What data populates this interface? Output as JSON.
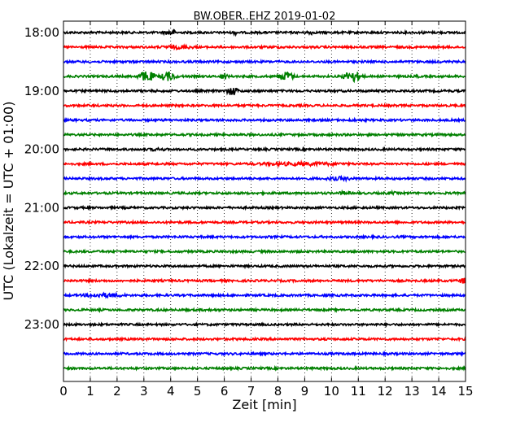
{
  "chart_data": {
    "type": "line",
    "title": "BW.OBER..EHZ 2019-01-02",
    "xlabel": "Zeit  [min]",
    "ylabel": "UTC (Lokalzeit = UTC + 01:00)",
    "xlim": [
      0,
      15
    ],
    "xticks": [
      "0",
      "1",
      "2",
      "3",
      "4",
      "5",
      "6",
      "7",
      "8",
      "9",
      "10",
      "11",
      "12",
      "13",
      "14",
      "15"
    ],
    "yticks": [
      {
        "label": "18:00",
        "trace": 0
      },
      {
        "label": "19:00",
        "trace": 4
      },
      {
        "label": "20:00",
        "trace": 8
      },
      {
        "label": "21:00",
        "trace": 12
      },
      {
        "label": "22:00",
        "trace": 16
      },
      {
        "label": "23:00",
        "trace": 20
      }
    ],
    "grid": "vertical dotted at each minute",
    "series": [
      {
        "color": "#000000",
        "bursts": [
          [
            4.0,
            0.5,
            4
          ],
          [
            6.4,
            0.2,
            3
          ],
          [
            9.2,
            0.3,
            3
          ],
          [
            13.4,
            0.2,
            2
          ]
        ]
      },
      {
        "color": "#ff0000",
        "bursts": [
          [
            4.3,
            1.8,
            2.5
          ],
          [
            8.0,
            1.5,
            1.5
          ]
        ]
      },
      {
        "color": "#0000ff",
        "bursts": []
      },
      {
        "color": "#008000",
        "bursts": [
          [
            3.1,
            0.6,
            7
          ],
          [
            3.9,
            0.6,
            6
          ],
          [
            6.0,
            0.3,
            4
          ],
          [
            8.3,
            0.6,
            6
          ],
          [
            10.8,
            0.7,
            7
          ],
          [
            13.2,
            0.3,
            2
          ]
        ]
      },
      {
        "color": "#000000",
        "bursts": [
          [
            6.3,
            0.4,
            6
          ]
        ]
      },
      {
        "color": "#ff0000",
        "bursts": []
      },
      {
        "color": "#0000ff",
        "bursts": [
          [
            10.8,
            0.4,
            2
          ]
        ]
      },
      {
        "color": "#008000",
        "bursts": [
          [
            7.6,
            0.6,
            1.5
          ]
        ]
      },
      {
        "color": "#000000",
        "bursts": [
          [
            3.5,
            1.0,
            2
          ]
        ]
      },
      {
        "color": "#ff0000",
        "bursts": [
          [
            8.9,
            5.0,
            2.5
          ]
        ]
      },
      {
        "color": "#0000ff",
        "bursts": [
          [
            10.3,
            1.5,
            2.5
          ]
        ]
      },
      {
        "color": "#008000",
        "bursts": [
          [
            10.5,
            0.6,
            2.5
          ],
          [
            12.2,
            0.8,
            2
          ]
        ]
      },
      {
        "color": "#000000",
        "bursts": []
      },
      {
        "color": "#ff0000",
        "bursts": []
      },
      {
        "color": "#0000ff",
        "bursts": []
      },
      {
        "color": "#008000",
        "bursts": []
      },
      {
        "color": "#000000",
        "bursts": [
          [
            0.5,
            0.3,
            1.5
          ]
        ]
      },
      {
        "color": "#ff0000",
        "bursts": [
          [
            14.9,
            0.3,
            4
          ]
        ]
      },
      {
        "color": "#0000ff",
        "bursts": [
          [
            1.5,
            2.0,
            3
          ]
        ]
      },
      {
        "color": "#008000",
        "bursts": [
          [
            5.5,
            3.0,
            1.5
          ]
        ]
      },
      {
        "color": "#000000",
        "bursts": []
      },
      {
        "color": "#ff0000",
        "bursts": [
          [
            4.0,
            0.3,
            1.5
          ]
        ]
      },
      {
        "color": "#0000ff",
        "bursts": []
      },
      {
        "color": "#008000",
        "bursts": []
      }
    ]
  }
}
